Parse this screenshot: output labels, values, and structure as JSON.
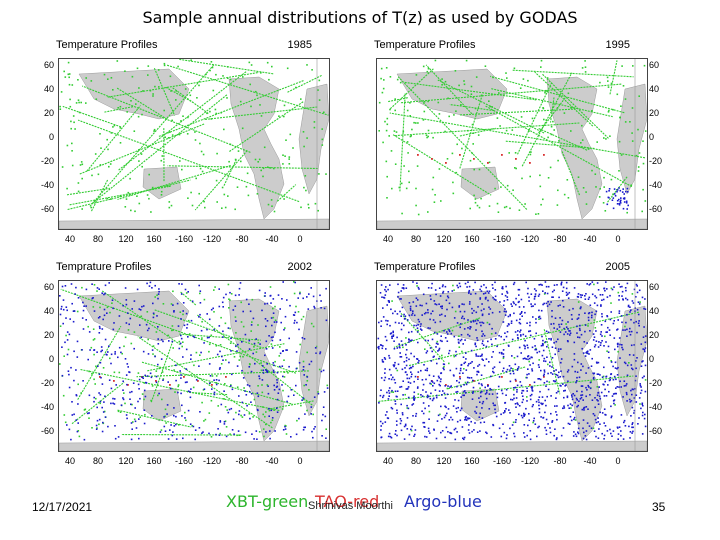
{
  "title": "Sample annual distributions of T(z) as used by GODAS",
  "panels": [
    {
      "title": "Temperature Profiles",
      "year": "1985"
    },
    {
      "title": "Temperature Profiles",
      "year": "1995"
    },
    {
      "title": "Temprature Profiles",
      "year": "2002"
    },
    {
      "title": "Temperature Profiles",
      "year": "2005"
    }
  ],
  "lat_ticks": [
    "60",
    "40",
    "20",
    "0",
    "-20",
    "-40",
    "-60"
  ],
  "lon_ticks": [
    "40",
    "80",
    "120",
    "160",
    "-160",
    "-120",
    "-80",
    "-40",
    "0"
  ],
  "footer": {
    "date": "12/17/2021",
    "legend_green": "XBT-green",
    "legend_red": "TAO-red",
    "legend_blue": "Argo-blue",
    "author": "Shrinivas Moorthi",
    "page": "35"
  },
  "colors": {
    "xbt": "#33cc33",
    "tao": "#d83030",
    "argo": "#1a1acc",
    "land": "#cccccc"
  }
}
